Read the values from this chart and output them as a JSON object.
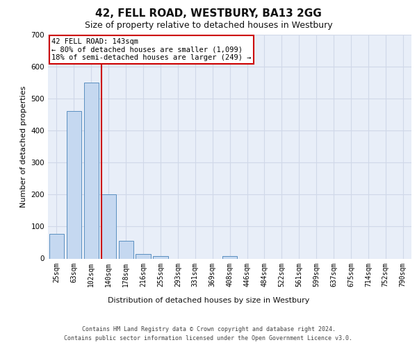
{
  "title1": "42, FELL ROAD, WESTBURY, BA13 2GG",
  "title2": "Size of property relative to detached houses in Westbury",
  "xlabel": "Distribution of detached houses by size in Westbury",
  "ylabel": "Number of detached properties",
  "footer1": "Contains HM Land Registry data © Crown copyright and database right 2024.",
  "footer2": "Contains public sector information licensed under the Open Government Licence v3.0.",
  "categories": [
    "25sqm",
    "63sqm",
    "102sqm",
    "140sqm",
    "178sqm",
    "216sqm",
    "255sqm",
    "293sqm",
    "331sqm",
    "369sqm",
    "408sqm",
    "446sqm",
    "484sqm",
    "522sqm",
    "561sqm",
    "599sqm",
    "637sqm",
    "675sqm",
    "714sqm",
    "752sqm",
    "790sqm"
  ],
  "bar_values": [
    78,
    462,
    551,
    201,
    55,
    14,
    8,
    0,
    0,
    0,
    8,
    0,
    0,
    0,
    0,
    0,
    0,
    0,
    0,
    0,
    0
  ],
  "bar_color": "#c5d8f0",
  "bar_edge_color": "#5a8fc0",
  "grid_color": "#d0d8e8",
  "background_color": "#e8eef8",
  "red_line_color": "#cc0000",
  "red_line_index": 3,
  "annotation_line1": "42 FELL ROAD: 143sqm",
  "annotation_line2": "← 80% of detached houses are smaller (1,099)",
  "annotation_line3": "18% of semi-detached houses are larger (249) →",
  "ylim": [
    0,
    700
  ],
  "yticks": [
    0,
    100,
    200,
    300,
    400,
    500,
    600,
    700
  ],
  "title1_fontsize": 11,
  "title2_fontsize": 9,
  "ylabel_fontsize": 8,
  "xlabel_fontsize": 8,
  "tick_fontsize": 7,
  "footer_fontsize": 6,
  "ann_fontsize": 7.5
}
